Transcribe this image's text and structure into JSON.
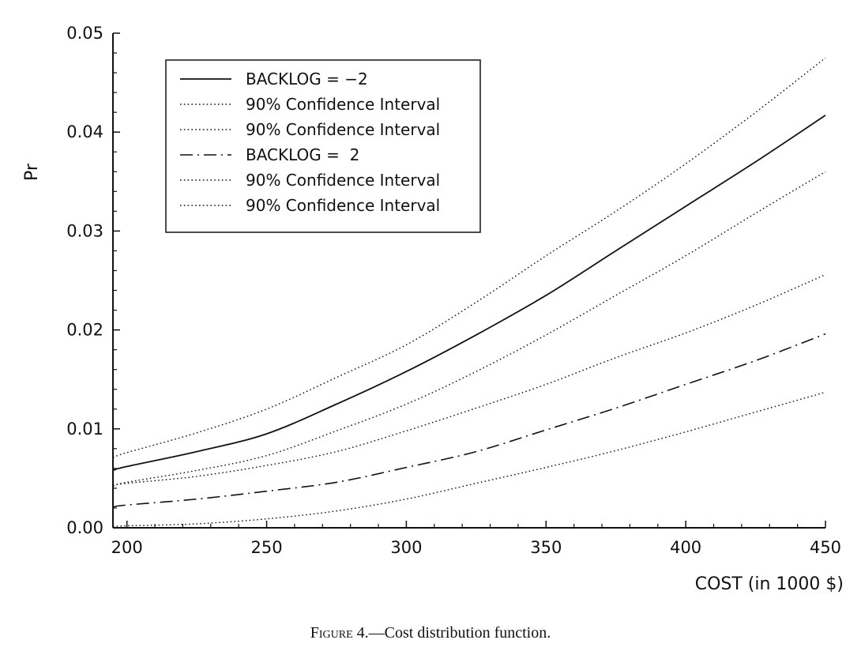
{
  "chart_data": {
    "type": "line",
    "title": "",
    "xlabel": "COST (in 1000 $)",
    "ylabel": "Pr",
    "xlim": [
      195,
      450
    ],
    "ylim": [
      0,
      0.05
    ],
    "xticks": [
      "200",
      "250",
      "300",
      "350",
      "400",
      "450"
    ],
    "yticks": [
      "0.00",
      "0.01",
      "0.02",
      "0.03",
      "0.04",
      "0.05"
    ],
    "grid": false,
    "legend_position": "top-left",
    "x": [
      195,
      200,
      225,
      250,
      275,
      300,
      325,
      350,
      375,
      400,
      425,
      450
    ],
    "series": [
      {
        "name": "BACKLOG = −2",
        "style": "solid",
        "values": [
          0.0058,
          0.0062,
          0.0077,
          0.0095,
          0.0125,
          0.0158,
          0.0195,
          0.0235,
          0.028,
          0.0325,
          0.037,
          0.0417
        ]
      },
      {
        "name": "90% Confidence Interval",
        "style": "dotted",
        "values": [
          0.0071,
          0.0076,
          0.0096,
          0.012,
          0.0152,
          0.0185,
          0.0228,
          0.0275,
          0.032,
          0.0368,
          0.042,
          0.0475
        ]
      },
      {
        "name": "90% Confidence Interval",
        "style": "dotted",
        "values": [
          0.0042,
          0.0046,
          0.0058,
          0.0073,
          0.0098,
          0.0125,
          0.0158,
          0.0195,
          0.0235,
          0.0275,
          0.0318,
          0.036
        ]
      },
      {
        "name": "BACKLOG =  2",
        "style": "dashdot",
        "values": [
          0.0021,
          0.0023,
          0.0029,
          0.0037,
          0.0046,
          0.0061,
          0.0077,
          0.0099,
          0.0121,
          0.0145,
          0.0169,
          0.0196
        ]
      },
      {
        "name": "90% Confidence Interval",
        "style": "dotted",
        "values": [
          0.0043,
          0.0045,
          0.0052,
          0.0063,
          0.0077,
          0.0098,
          0.0121,
          0.0145,
          0.0172,
          0.0197,
          0.0225,
          0.0256
        ]
      },
      {
        "name": "90% Confidence Interval",
        "style": "dotted",
        "values": [
          0.0001,
          0.0002,
          0.0004,
          0.0009,
          0.0017,
          0.0029,
          0.0045,
          0.0061,
          0.0078,
          0.0097,
          0.0117,
          0.0137
        ]
      }
    ]
  },
  "caption": {
    "figure_label": "Figure 4.",
    "text": "—Cost distribution function."
  }
}
